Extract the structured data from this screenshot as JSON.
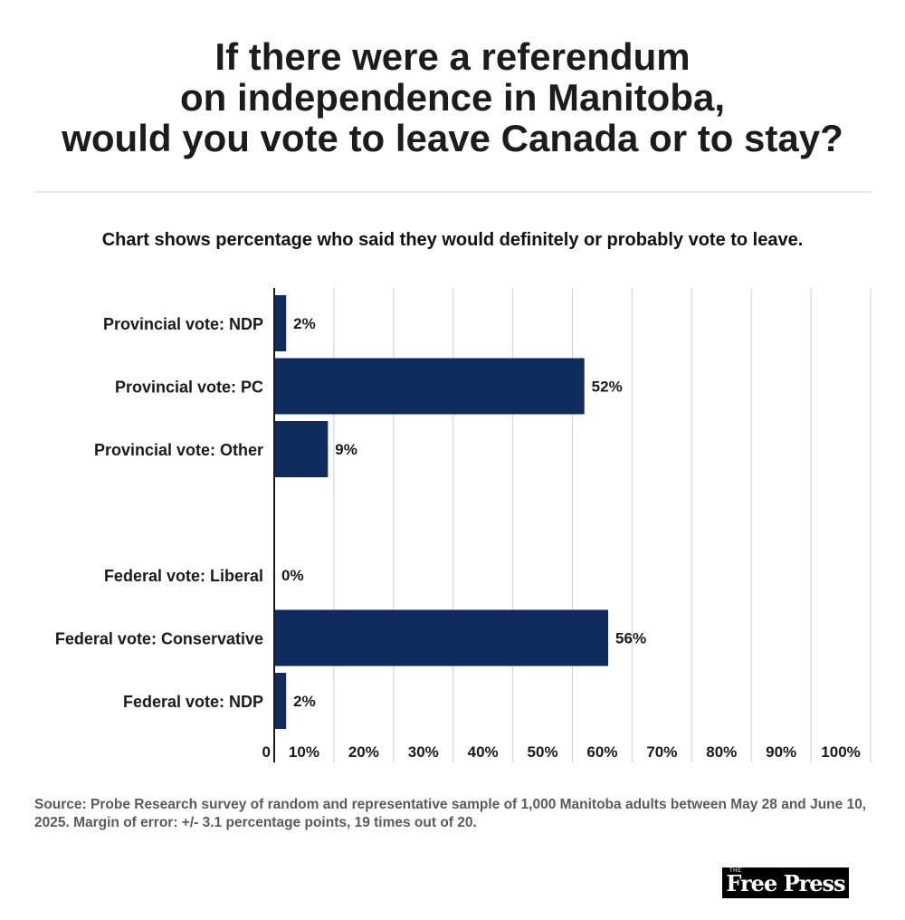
{
  "header": {
    "title": "If there were a referendum\non independence in Manitoba,\nwould you vote to leave Canada or to stay?",
    "subtitle": "Chart shows percentage who said they would definitely or probably vote to leave."
  },
  "chart_data": {
    "type": "bar",
    "orientation": "horizontal",
    "title": "If there were a referendum on independence in Manitoba, would you vote to leave Canada or to stay?",
    "subtitle": "Chart shows percentage who said they would definitely or probably vote to leave.",
    "xlabel": "",
    "ylabel": "",
    "xlim": [
      0,
      100
    ],
    "ticks": [
      "0",
      "10%",
      "20%",
      "30%",
      "40%",
      "50%",
      "60%",
      "70%",
      "80%",
      "90%",
      "100%"
    ],
    "categories": [
      "Provincial vote: NDP",
      "Provincial vote: PC",
      "Provincial vote: Other",
      "",
      "Federal vote: Liberal",
      "Federal vote: Conservative",
      "Federal vote: NDP"
    ],
    "values": [
      2,
      52,
      9,
      null,
      0,
      56,
      2
    ],
    "value_labels": [
      "2%",
      "52%",
      "9%",
      "",
      "0%",
      "56%",
      "2%"
    ],
    "bar_color": "#0f2a5c",
    "grid": true
  },
  "footer": {
    "source": "Source: Probe Research survey of random and representative sample of 1,000 Manitoba adults between May 28 and June 10, 2025. Margin of error: +/- 3.1 percentage points, 19 times out of 20.",
    "logo_text": "Free Press",
    "logo_small": "THE"
  }
}
